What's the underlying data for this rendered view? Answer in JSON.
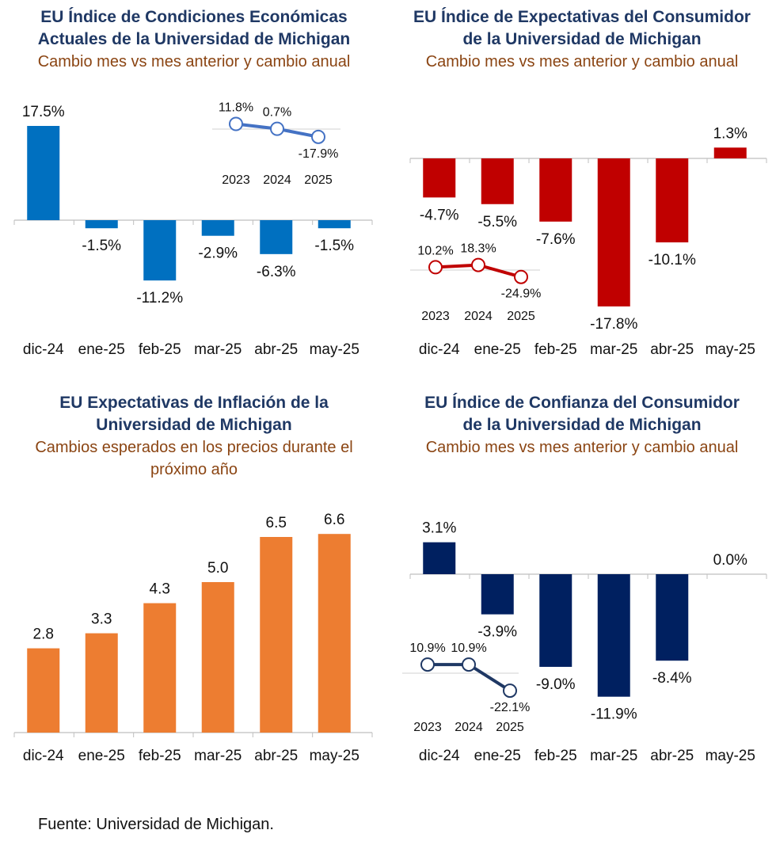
{
  "source": "Fuente: Universidad de Michigan.",
  "chart_data": [
    {
      "id": "p1",
      "type": "bar",
      "title_lines": [
        "EU Índice de Condiciones Económicas",
        "Actuales de la Universidad de Michigan"
      ],
      "subtitle_lines": [
        "Cambio mes vs mes anterior y cambio anual"
      ],
      "categories": [
        "dic-24",
        "ene-25",
        "feb-25",
        "mar-25",
        "abr-25",
        "may-25"
      ],
      "values": [
        17.5,
        -1.5,
        -11.2,
        -2.9,
        -6.3,
        -1.5
      ],
      "labels": [
        "17.5%",
        "-1.5%",
        "-11.2%",
        "-2.9%",
        "-6.3%",
        "-1.5%"
      ],
      "color": "#0070c0",
      "inset": {
        "type": "line",
        "categories": [
          "2023",
          "2024",
          "2025"
        ],
        "values": [
          11.8,
          0.7,
          -17.9
        ],
        "labels": [
          "11.8%",
          "0.7%",
          "-17.9%"
        ],
        "color": "#4472c4"
      }
    },
    {
      "id": "p2",
      "type": "bar",
      "title_lines": [
        "EU Índice de Expectativas del Consumidor",
        "de la Universidad de Michigan"
      ],
      "subtitle_lines": [
        "Cambio mes vs mes anterior y cambio anual"
      ],
      "categories": [
        "dic-24",
        "ene-25",
        "feb-25",
        "mar-25",
        "abr-25",
        "may-25"
      ],
      "values": [
        -4.7,
        -5.5,
        -7.6,
        -17.8,
        -10.1,
        1.3
      ],
      "labels": [
        "-4.7%",
        "-5.5%",
        "-7.6%",
        "-17.8%",
        "-10.1%",
        "1.3%"
      ],
      "color": "#c00000",
      "inset": {
        "type": "line",
        "categories": [
          "2023",
          "2024",
          "2025"
        ],
        "values": [
          10.2,
          18.3,
          -24.9
        ],
        "labels": [
          "10.2%",
          "18.3%",
          "-24.9%"
        ],
        "color": "#c00000"
      }
    },
    {
      "id": "p3",
      "type": "bar",
      "title_lines": [
        "EU Expectativas de Inflación de la",
        "Universidad de Michigan"
      ],
      "subtitle_lines": [
        "Cambios esperados en los precios durante el",
        "próximo año"
      ],
      "categories": [
        "dic-24",
        "ene-25",
        "feb-25",
        "mar-25",
        "abr-25",
        "may-25"
      ],
      "values": [
        2.8,
        3.3,
        4.3,
        5.0,
        6.5,
        6.6
      ],
      "labels": [
        "2.8",
        "3.3",
        "4.3",
        "5.0",
        "6.5",
        "6.6"
      ],
      "color": "#ed7d31"
    },
    {
      "id": "p4",
      "type": "bar",
      "title_lines": [
        "EU Índice de Confianza del Consumidor",
        "de la Universidad de Michigan"
      ],
      "subtitle_lines": [
        "Cambio mes vs mes anterior y cambio anual"
      ],
      "categories": [
        "dic-24",
        "ene-25",
        "feb-25",
        "mar-25",
        "abr-25",
        "may-25"
      ],
      "values": [
        3.1,
        -3.9,
        -9.0,
        -11.9,
        -8.4,
        0.0
      ],
      "labels": [
        "3.1%",
        "-3.9%",
        "-9.0%",
        "-11.9%",
        "-8.4%",
        "0.0%"
      ],
      "color": "#002060",
      "inset": {
        "type": "line",
        "categories": [
          "2023",
          "2024",
          "2025"
        ],
        "values": [
          10.9,
          10.9,
          -22.1
        ],
        "labels": [
          "10.9%",
          "10.9%",
          "-22.1%"
        ],
        "color": "#1f3864"
      }
    }
  ]
}
